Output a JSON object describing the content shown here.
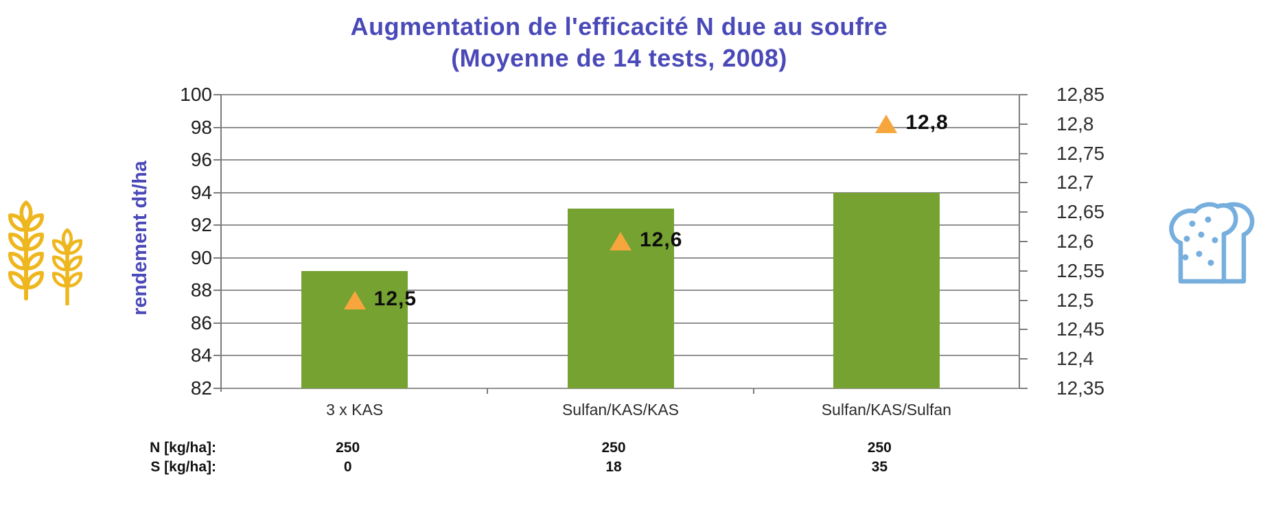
{
  "title": {
    "line1": "Augmentation de l'efficacité N due au soufre",
    "line2": "(Moyenne de 14 tests, 2008)",
    "color": "#4a49b8"
  },
  "left_axis": {
    "label": "rendement dt/ha",
    "tick_labels": [
      "100",
      "98",
      "96",
      "94",
      "92",
      "90",
      "88",
      "86",
      "84",
      "82"
    ]
  },
  "right_axis": {
    "tick_labels": [
      "12,85",
      "12,8",
      "12,75",
      "12,7",
      "12,65",
      "12,6",
      "12,55",
      "12,5",
      "12,45",
      "12,4",
      "12,35"
    ]
  },
  "chart_data": {
    "type": "bar",
    "title": "Augmentation de l'efficacité N due au soufre (Moyenne de 14 tests, 2008)",
    "categories": [
      "3 x KAS",
      "Sulfan/KAS/KAS",
      "Sulfan/KAS/Sulfan"
    ],
    "series": [
      {
        "name": "rendement",
        "type": "bar",
        "axis": "left",
        "color": "#76a232",
        "values": [
          89.2,
          93,
          94
        ]
      },
      {
        "name": "markers",
        "type": "point",
        "marker": "triangle",
        "axis": "right",
        "color": "#f6a63d",
        "values": [
          12.5,
          12.6,
          12.8
        ],
        "point_labels": [
          "12,5",
          "12,6",
          "12,8"
        ]
      }
    ],
    "left_ylim": [
      82,
      100
    ],
    "left_step": 2,
    "right_ylim": [
      12.35,
      12.85
    ],
    "right_step": 0.05,
    "grid": true,
    "legend": false
  },
  "annotation_rows": [
    {
      "label": "N [kg/ha]:",
      "values": [
        "250",
        "250",
        "250"
      ]
    },
    {
      "label": "S [kg/ha]:",
      "values": [
        "0",
        "18",
        "35"
      ]
    }
  ],
  "icons": {
    "left": "wheat-icon",
    "right": "bread-icon",
    "wheat_color": "#eeb71f",
    "bread_color": "#76aedd"
  },
  "colors": {
    "bar": "#76a232",
    "marker": "#f6a63d",
    "grid": "#909090",
    "axis": "#7b7b7b",
    "accent_blue": "#4a49b8",
    "background": "#ffffff"
  }
}
